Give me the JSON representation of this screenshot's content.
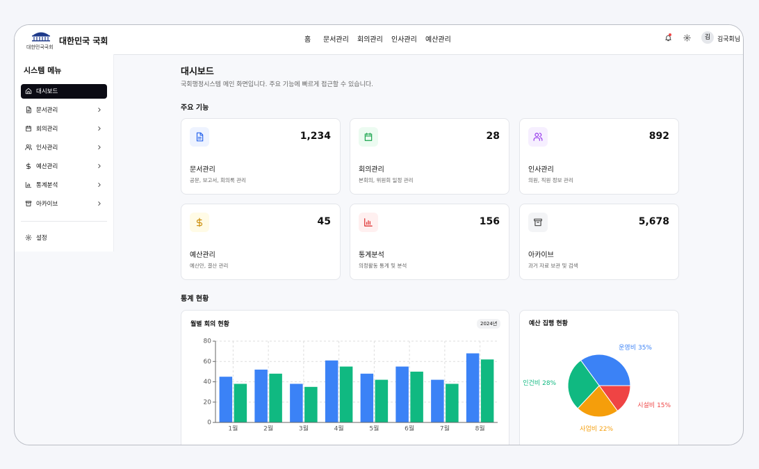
{
  "header": {
    "logo_caption": "대한민국국회",
    "title": "대한민국 국회",
    "nav": [
      "홈",
      "문서관리",
      "회의관리",
      "인사관리",
      "예산관리"
    ],
    "avatar": "김",
    "user": "김국회님"
  },
  "sidebar": {
    "title": "시스템 메뉴",
    "items": [
      "대시보드",
      "문서관리",
      "회의관리",
      "인사관리",
      "예산관리",
      "통계분석",
      "아카이브"
    ],
    "settings": "설정"
  },
  "main": {
    "title": "대시보드",
    "subtitle": "국회행정시스템 메인 화면입니다. 주요 기능에 빠르게 접근할 수 있습니다.",
    "features_heading": "주요 기능",
    "cards": [
      {
        "value": "1,234",
        "title": "문서관리",
        "desc": "공문, 보고서, 회의록 관리"
      },
      {
        "value": "28",
        "title": "회의관리",
        "desc": "본회의, 위원회 일정 관리"
      },
      {
        "value": "892",
        "title": "인사관리",
        "desc": "의원, 직원 정보 관리"
      },
      {
        "value": "45",
        "title": "예산관리",
        "desc": "예산안, 결산 관리"
      },
      {
        "value": "156",
        "title": "통계분석",
        "desc": "의정활동 통계 및 분석"
      },
      {
        "value": "5,678",
        "title": "아카이브",
        "desc": "과거 자료 보관 및 검색"
      }
    ],
    "stats_heading": "통계 현황"
  },
  "chart_data": [
    {
      "type": "bar",
      "title": "월별 회의 현황",
      "badge": "2024년",
      "categories": [
        "1월",
        "2월",
        "3월",
        "4월",
        "5월",
        "6월",
        "7월",
        "8월"
      ],
      "series": [
        {
          "color": "#3b82f6",
          "values": [
            45,
            52,
            38,
            61,
            48,
            55,
            42,
            68
          ]
        },
        {
          "color": "#10b981",
          "values": [
            38,
            48,
            35,
            55,
            42,
            50,
            38,
            62
          ]
        }
      ],
      "ylim": [
        0,
        80
      ],
      "yticks": [
        0,
        20,
        40,
        60,
        80
      ],
      "grid": true
    },
    {
      "type": "pie",
      "title": "예산 집행 현황",
      "categories": [
        "운영비",
        "시설비",
        "사업비",
        "인건비"
      ],
      "values": [
        35,
        15,
        22,
        28
      ],
      "value_labels": [
        "35%",
        "15%",
        "22%",
        "28%"
      ],
      "colors": [
        "#3b82f6",
        "#ef4444",
        "#f59e0b",
        "#10b981"
      ]
    }
  ]
}
